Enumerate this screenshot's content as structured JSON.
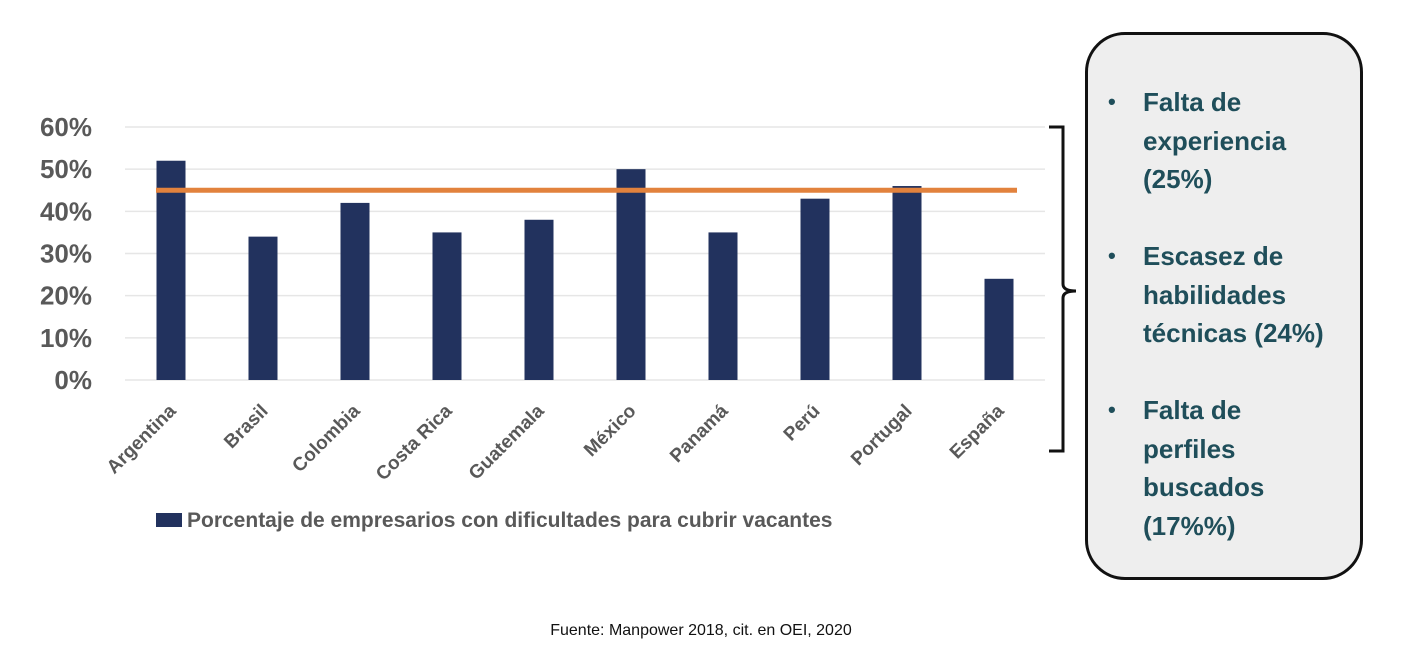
{
  "chart_data": {
    "type": "bar",
    "categories": [
      "Argentina",
      "Brasil",
      "Colombia",
      "Costa Rica",
      "Guatemala",
      "México",
      "Panamá",
      "Perú",
      "Portugal",
      "España"
    ],
    "series": [
      {
        "name": "Porcentaje de empresarios con dificultades para cubrir vacantes",
        "values": [
          52,
          34,
          42,
          35,
          38,
          50,
          35,
          43,
          46,
          24
        ]
      }
    ],
    "reference_line": {
      "value": 45
    },
    "yticks": [
      "0%",
      "10%",
      "20%",
      "30%",
      "40%",
      "50%",
      "60%"
    ],
    "ylim": [
      0,
      60
    ],
    "grid": true,
    "legend_position": "bottom",
    "colors": {
      "bar": "#22325e",
      "reference_line": "#e2823d",
      "grid": "#e6e6e6",
      "tick_text": "#595959"
    }
  },
  "side_panel": {
    "items": [
      {
        "lines": [
          "Falta de",
          "experiencia",
          "(25%)"
        ]
      },
      {
        "lines": [
          "Escasez de",
          "habilidades",
          "técnicas (24%)"
        ]
      },
      {
        "lines": [
          "Falta de",
          "perfiles",
          "buscados",
          "(17%%)"
        ]
      }
    ],
    "text_color": "#1f4e5a",
    "background": "#eeeeee"
  },
  "source": "Fuente: Manpower 2018, cit. en OEI, 2020"
}
